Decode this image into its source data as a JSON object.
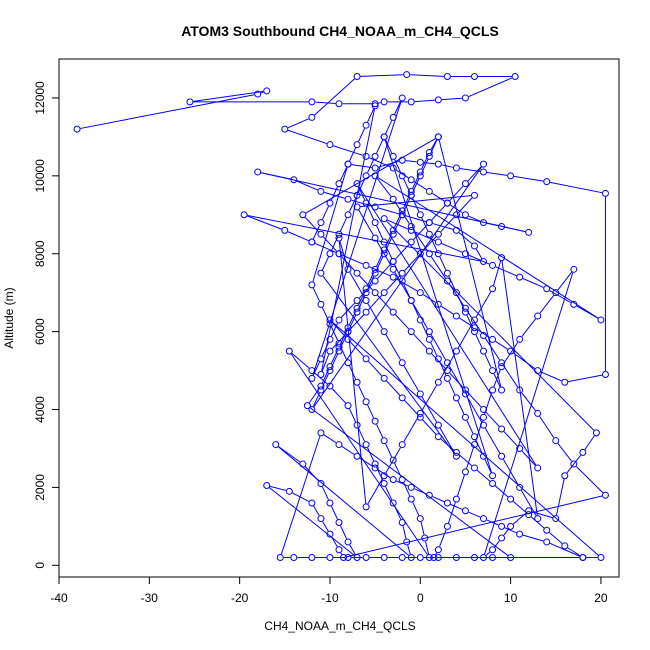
{
  "chart_data": {
    "type": "line",
    "title": "ATOM3 Southbound CH4_NOAA_m_CH4_QCLS",
    "xlabel": "CH4_NOAA_m_CH4_QCLS",
    "ylabel": "Altitude (m)",
    "xlim": [
      -40,
      22
    ],
    "ylim": [
      -300,
      13000
    ],
    "x_ticks": [
      -40,
      -30,
      -20,
      -10,
      0,
      10,
      20
    ],
    "y_ticks": [
      0,
      2000,
      4000,
      6000,
      8000,
      10000,
      12000
    ],
    "grid": false,
    "legend": "none",
    "marker": "open-circle",
    "series": [
      {
        "color": "#0000ff",
        "points": [
          [
            -38,
            11200
          ],
          [
            -18,
            12100
          ],
          [
            -17,
            12180
          ],
          [
            -25.5,
            11900
          ],
          [
            -12,
            11900
          ],
          [
            -9,
            11850
          ],
          [
            -5,
            11850
          ],
          [
            -4,
            11900
          ],
          [
            -1,
            11900
          ],
          [
            2,
            11950
          ],
          [
            5,
            12000
          ],
          [
            10.5,
            12550
          ],
          [
            6,
            12550
          ],
          [
            3,
            12550
          ],
          [
            -1.5,
            12600
          ],
          [
            -7,
            12550
          ],
          [
            -12,
            11500
          ],
          [
            -15,
            11200
          ],
          [
            -10,
            10800
          ],
          [
            -6,
            10500
          ],
          [
            -3,
            10200
          ],
          [
            -1,
            9900
          ],
          [
            1,
            9600
          ],
          [
            3,
            9300
          ],
          [
            5,
            9000
          ],
          [
            7,
            8800
          ],
          [
            9,
            8700
          ],
          [
            12,
            8550
          ],
          [
            -18,
            10100
          ],
          [
            -14,
            9900
          ],
          [
            -11,
            9600
          ],
          [
            -8,
            9400
          ],
          [
            -5,
            9200
          ],
          [
            -2,
            9000
          ],
          [
            1,
            8800
          ],
          [
            4,
            8600
          ],
          [
            6,
            8200
          ],
          [
            7,
            7800
          ],
          [
            -19.5,
            9000
          ],
          [
            -15,
            8600
          ],
          [
            -12,
            8300
          ],
          [
            -9,
            8000
          ],
          [
            -6,
            7700
          ],
          [
            -3,
            7400
          ],
          [
            0,
            7000
          ],
          [
            2,
            6700
          ],
          [
            4,
            6400
          ],
          [
            6,
            6100
          ],
          [
            8,
            5800
          ],
          [
            10,
            5500
          ],
          [
            13,
            5000
          ],
          [
            16,
            4700
          ],
          [
            20.5,
            4900
          ],
          [
            20.5,
            9550
          ],
          [
            14,
            9850
          ],
          [
            10,
            10000
          ],
          [
            7,
            10100
          ],
          [
            4,
            10200
          ],
          [
            2,
            10300
          ],
          [
            0,
            10350
          ],
          [
            -2,
            10400
          ],
          [
            -5,
            10200
          ],
          [
            -8,
            10300
          ],
          [
            -12,
            7200
          ],
          [
            -11,
            6700
          ],
          [
            -10,
            6200
          ],
          [
            -9,
            5700
          ],
          [
            -8,
            5200
          ],
          [
            -7,
            4700
          ],
          [
            -6,
            4200
          ],
          [
            -5,
            3700
          ],
          [
            -4,
            3200
          ],
          [
            -3,
            2700
          ],
          [
            -2,
            2200
          ],
          [
            -1,
            1700
          ],
          [
            0,
            1200
          ],
          [
            0.5,
            700
          ],
          [
            1,
            200
          ],
          [
            -14.5,
            5500
          ],
          [
            -12,
            5000
          ],
          [
            -10,
            4600
          ],
          [
            -8,
            4100
          ],
          [
            -7,
            3600
          ],
          [
            -6,
            3100
          ],
          [
            -5,
            2600
          ],
          [
            -4,
            2100
          ],
          [
            -3,
            1600
          ],
          [
            -2,
            1100
          ],
          [
            -1.5,
            600
          ],
          [
            -1,
            200
          ],
          [
            -16,
            3100
          ],
          [
            -13,
            2600
          ],
          [
            -11,
            2100
          ],
          [
            -10,
            1600
          ],
          [
            -9,
            1100
          ],
          [
            -8,
            600
          ],
          [
            -7,
            200
          ],
          [
            -17,
            2050
          ],
          [
            -14.5,
            1900
          ],
          [
            -12,
            1600
          ],
          [
            -11,
            1200
          ],
          [
            -10,
            800
          ],
          [
            -9,
            400
          ],
          [
            -8.5,
            200
          ],
          [
            20.5,
            1800
          ],
          [
            17,
            2600
          ],
          [
            15,
            3200
          ],
          [
            13,
            3900
          ],
          [
            11,
            4500
          ],
          [
            9,
            5200
          ],
          [
            7,
            5900
          ],
          [
            5,
            6600
          ],
          [
            3,
            7300
          ],
          [
            1,
            8000
          ],
          [
            -1,
            8700
          ],
          [
            -3,
            9400
          ],
          [
            -5,
            10000
          ],
          [
            20,
            6300
          ],
          [
            17,
            6700
          ],
          [
            14,
            7100
          ],
          [
            11,
            7400
          ],
          [
            8,
            7700
          ],
          [
            5,
            8000
          ],
          [
            2,
            8300
          ],
          [
            -1,
            8600
          ],
          [
            -4,
            8900
          ],
          [
            19.5,
            3400
          ],
          [
            18,
            2900
          ],
          [
            16,
            2300
          ],
          [
            15,
            1200
          ],
          [
            12,
            1400
          ],
          [
            10,
            1000
          ],
          [
            9,
            700
          ],
          [
            8,
            400
          ],
          [
            7,
            200
          ],
          [
            17,
            7600
          ],
          [
            15,
            7000
          ],
          [
            13,
            6400
          ],
          [
            11,
            5800
          ],
          [
            9,
            5100
          ],
          [
            8,
            4500
          ],
          [
            7,
            3800
          ],
          [
            6,
            3100
          ],
          [
            5,
            2400
          ],
          [
            4,
            1700
          ],
          [
            3,
            1000
          ],
          [
            2,
            400
          ],
          [
            1.5,
            200
          ],
          [
            18,
            200
          ],
          [
            16,
            500
          ],
          [
            14,
            900
          ],
          [
            12,
            1300
          ],
          [
            10,
            1700
          ],
          [
            8,
            2100
          ],
          [
            6,
            2500
          ],
          [
            4,
            2900
          ],
          [
            2,
            3300
          ],
          [
            0,
            3800
          ],
          [
            -2,
            4300
          ],
          [
            -4,
            4800
          ],
          [
            -6,
            5300
          ],
          [
            -8,
            5800
          ],
          [
            -10,
            6300
          ],
          [
            20,
            200
          ],
          [
            18,
            200
          ],
          [
            14,
            600
          ],
          [
            11,
            800
          ],
          [
            9,
            1000
          ],
          [
            7,
            1200
          ],
          [
            5,
            1400
          ],
          [
            3,
            1600
          ],
          [
            1,
            1800
          ],
          [
            -1,
            2000
          ],
          [
            -3,
            2200
          ],
          [
            -5,
            2500
          ],
          [
            -7,
            2800
          ],
          [
            -9,
            3100
          ],
          [
            -11,
            3400
          ],
          [
            -15.5,
            200
          ],
          [
            -14,
            200
          ],
          [
            -12,
            200
          ],
          [
            -10,
            200
          ],
          [
            -8,
            200
          ],
          [
            -6,
            200
          ],
          [
            -4,
            200
          ],
          [
            -2,
            200
          ],
          [
            0,
            200
          ],
          [
            2,
            200
          ],
          [
            4,
            200
          ],
          [
            6,
            200
          ],
          [
            8,
            200
          ],
          [
            10,
            200
          ],
          [
            -12.5,
            4100
          ],
          [
            -11,
            4600
          ],
          [
            -10,
            5100
          ],
          [
            -9,
            5600
          ],
          [
            -8,
            6100
          ],
          [
            -7,
            6600
          ],
          [
            -6,
            7100
          ],
          [
            -5,
            7600
          ],
          [
            -4,
            8100
          ],
          [
            -3,
            8600
          ],
          [
            -2,
            9100
          ],
          [
            -1,
            9600
          ],
          [
            0,
            10100
          ],
          [
            1,
            10600
          ],
          [
            2,
            11000
          ],
          [
            -13,
            9000
          ],
          [
            -11,
            8500
          ],
          [
            -9,
            8000
          ],
          [
            -7,
            7500
          ],
          [
            -5,
            7000
          ],
          [
            -3,
            6500
          ],
          [
            -1,
            6000
          ],
          [
            1,
            5500
          ],
          [
            3,
            5000
          ],
          [
            5,
            4500
          ],
          [
            7,
            4000
          ],
          [
            9,
            3500
          ],
          [
            11,
            3000
          ],
          [
            13,
            2500
          ],
          [
            -7,
            9800
          ],
          [
            -6,
            9300
          ],
          [
            -5,
            8800
          ],
          [
            -4,
            8300
          ],
          [
            -3,
            7800
          ],
          [
            -2,
            7300
          ],
          [
            -1,
            6800
          ],
          [
            0,
            6300
          ],
          [
            1,
            5800
          ],
          [
            2,
            5300
          ],
          [
            3,
            4800
          ],
          [
            4,
            4300
          ],
          [
            5,
            3800
          ],
          [
            6,
            3300
          ],
          [
            7,
            2800
          ],
          [
            8,
            2300
          ],
          [
            -4,
            11000
          ],
          [
            -3,
            10500
          ],
          [
            -2,
            10000
          ],
          [
            -1,
            9500
          ],
          [
            0,
            9000
          ],
          [
            1,
            8500
          ],
          [
            2,
            8000
          ],
          [
            3,
            7500
          ],
          [
            4,
            7000
          ],
          [
            5,
            6500
          ],
          [
            6,
            6000
          ],
          [
            7,
            5500
          ],
          [
            8,
            5000
          ],
          [
            9,
            4500
          ],
          [
            2,
            11000
          ],
          [
            1,
            10500
          ],
          [
            0,
            10000
          ],
          [
            -1,
            9500
          ],
          [
            -2,
            9000
          ],
          [
            -3,
            8500
          ],
          [
            -4,
            8000
          ],
          [
            -5,
            7500
          ],
          [
            -6,
            7000
          ],
          [
            -7,
            6500
          ],
          [
            -8,
            6000
          ],
          [
            -9,
            5500
          ],
          [
            -10,
            5000
          ],
          [
            -11,
            4500
          ],
          [
            -12,
            4000
          ],
          [
            7,
            10300
          ],
          [
            5,
            9800
          ],
          [
            3,
            9300
          ],
          [
            1,
            8800
          ],
          [
            -1,
            8300
          ],
          [
            -3,
            7800
          ],
          [
            -5,
            7300
          ],
          [
            -7,
            6800
          ],
          [
            -9,
            6300
          ],
          [
            -10,
            5800
          ],
          [
            -11,
            5300
          ],
          [
            -12,
            4800
          ],
          [
            -2,
            12000
          ],
          [
            -3,
            11500
          ],
          [
            -4,
            11000
          ],
          [
            -5,
            10500
          ],
          [
            -6,
            10000
          ],
          [
            -7,
            9500
          ],
          [
            -8,
            9000
          ],
          [
            -9,
            8500
          ],
          [
            -10,
            8000
          ],
          [
            -11,
            7500
          ],
          [
            4,
            2800
          ],
          [
            2,
            3600
          ],
          [
            0,
            4400
          ],
          [
            -2,
            5200
          ],
          [
            -4,
            6000
          ],
          [
            -6,
            6800
          ],
          [
            -8,
            7600
          ],
          [
            -9,
            8400
          ],
          [
            -6,
            1500
          ],
          [
            -4,
            2300
          ],
          [
            -2,
            3100
          ],
          [
            0,
            3900
          ],
          [
            2,
            4700
          ],
          [
            4,
            5500
          ],
          [
            6,
            6300
          ],
          [
            8,
            7100
          ],
          [
            9,
            7900
          ],
          [
            13,
            1200
          ],
          [
            11,
            2000
          ],
          [
            9,
            2800
          ],
          [
            7,
            3600
          ],
          [
            5,
            4400
          ],
          [
            3,
            5200
          ],
          [
            1,
            6000
          ],
          [
            -1,
            6800
          ],
          [
            -3,
            7600
          ],
          [
            -5,
            8400
          ],
          [
            -7,
            9200
          ],
          [
            6,
            9500
          ],
          [
            4,
            9000
          ],
          [
            2,
            8500
          ],
          [
            0,
            8000
          ],
          [
            -2,
            7500
          ],
          [
            -4,
            7000
          ],
          [
            -6,
            6500
          ],
          [
            -8,
            6000
          ],
          [
            -10,
            5500
          ],
          [
            -11,
            4900
          ],
          [
            -5,
            11800
          ],
          [
            -6,
            11300
          ],
          [
            -7,
            10800
          ],
          [
            -8,
            10300
          ],
          [
            -9,
            9800
          ],
          [
            -10,
            9300
          ],
          [
            -11,
            8800
          ],
          [
            -12,
            8300
          ]
        ]
      }
    ]
  }
}
